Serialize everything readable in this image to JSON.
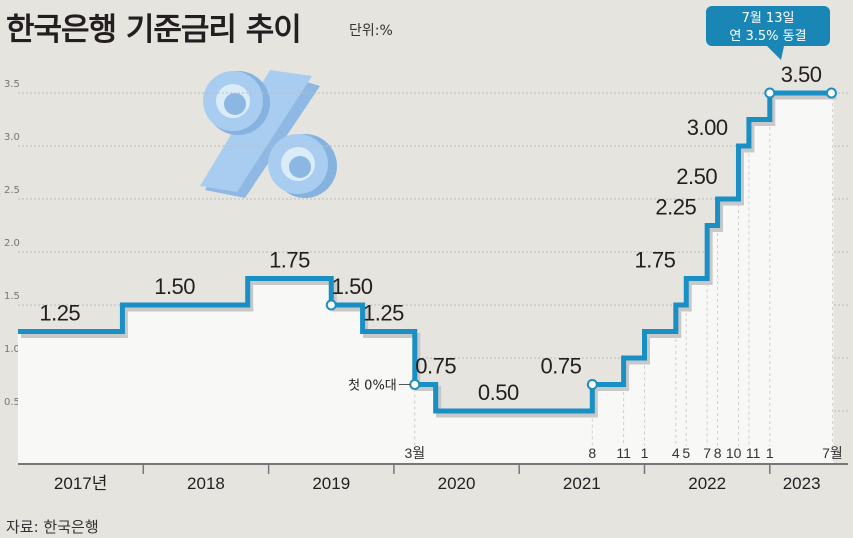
{
  "title": "한국은행 기준금리 추이",
  "unit": "단위:%",
  "source": "자료: 한국은행",
  "colors": {
    "line": "#1a8fc4",
    "callout": "#1a86b6",
    "plot_bg": "#f8f8f6",
    "background": "#e6e4df"
  },
  "icon": "percent-3d-icon",
  "chart_data": {
    "type": "line",
    "step": true,
    "title": "한국은행 기준금리 추이",
    "ylabel": "단위:%",
    "ylim": [
      0,
      3.5
    ],
    "yticks": [
      "0.5",
      "1.0",
      "1.5",
      "2.0",
      "2.5",
      "3.0",
      "3.5"
    ],
    "grid": true,
    "series": [
      {
        "name": "기준금리",
        "points": [
          {
            "date": "2017-01",
            "value": 1.25
          },
          {
            "date": "2017-11",
            "value": 1.5
          },
          {
            "date": "2018-11",
            "value": 1.75
          },
          {
            "date": "2019-07",
            "value": 1.5
          },
          {
            "date": "2019-10",
            "value": 1.25
          },
          {
            "date": "2020-03",
            "value": 0.75
          },
          {
            "date": "2020-05",
            "value": 0.5
          },
          {
            "date": "2021-08",
            "value": 0.75
          },
          {
            "date": "2021-11",
            "value": 1.0
          },
          {
            "date": "2022-01",
            "value": 1.25
          },
          {
            "date": "2022-04",
            "value": 1.5
          },
          {
            "date": "2022-05",
            "value": 1.75
          },
          {
            "date": "2022-07",
            "value": 2.25
          },
          {
            "date": "2022-08",
            "value": 2.5
          },
          {
            "date": "2022-10",
            "value": 3.0
          },
          {
            "date": "2022-11",
            "value": 3.25
          },
          {
            "date": "2023-01",
            "value": 3.5
          },
          {
            "date": "2023-07",
            "value": 3.5
          }
        ]
      }
    ],
    "x_years": [
      "2017년",
      "2018",
      "2019",
      "2020",
      "2021",
      "2022",
      "2023"
    ],
    "month_labels": [
      {
        "date": "2020-03",
        "text": "3월"
      },
      {
        "date": "2021-08",
        "text": "8"
      },
      {
        "date": "2021-11",
        "text": "11"
      },
      {
        "date": "2022-01",
        "text": "1"
      },
      {
        "date": "2022-04",
        "text": "4"
      },
      {
        "date": "2022-05",
        "text": "5"
      },
      {
        "date": "2022-07",
        "text": "7"
      },
      {
        "date": "2022-08",
        "text": "8"
      },
      {
        "date": "2022-10",
        "text": "10"
      },
      {
        "date": "2022-11",
        "text": "11"
      },
      {
        "date": "2023-01",
        "text": "1"
      },
      {
        "date": "2023-07",
        "text": "7월"
      }
    ],
    "value_labels": [
      {
        "date": "2017-05",
        "value": 1.25,
        "text": "1.25"
      },
      {
        "date": "2018-04",
        "value": 1.5,
        "text": "1.50"
      },
      {
        "date": "2019-03",
        "value": 1.75,
        "text": "1.75"
      },
      {
        "date": "2019-09",
        "value": 1.5,
        "text": "1.50"
      },
      {
        "date": "2019-12",
        "value": 1.25,
        "text": "1.25"
      },
      {
        "date": "2020-05",
        "value": 0.75,
        "text": "0.75"
      },
      {
        "date": "2020-11",
        "value": 0.5,
        "text": "0.50"
      },
      {
        "date": "2021-05",
        "value": 0.75,
        "text": "0.75"
      },
      {
        "date": "2022-02",
        "value": 1.75,
        "text": "1.75"
      },
      {
        "date": "2022-04",
        "value": 2.25,
        "text": "2.25"
      },
      {
        "date": "2022-06",
        "value": 2.5,
        "text": "2.50"
      },
      {
        "date": "2022-07",
        "value": 3.0,
        "text": "3.00"
      },
      {
        "date": "2023-04",
        "value": 3.5,
        "text": "3.50"
      }
    ],
    "markers": [
      "2019-07",
      "2020-03",
      "2021-08",
      "2023-01",
      "2023-07"
    ],
    "annotations": [
      {
        "date": "2020-03",
        "text": "첫 0%대"
      },
      {
        "date": "2023-07",
        "text": "7월 13일 연 3.5% 동결",
        "lines": [
          "7월 13일",
          "연 3.5% 동결"
        ]
      }
    ]
  }
}
